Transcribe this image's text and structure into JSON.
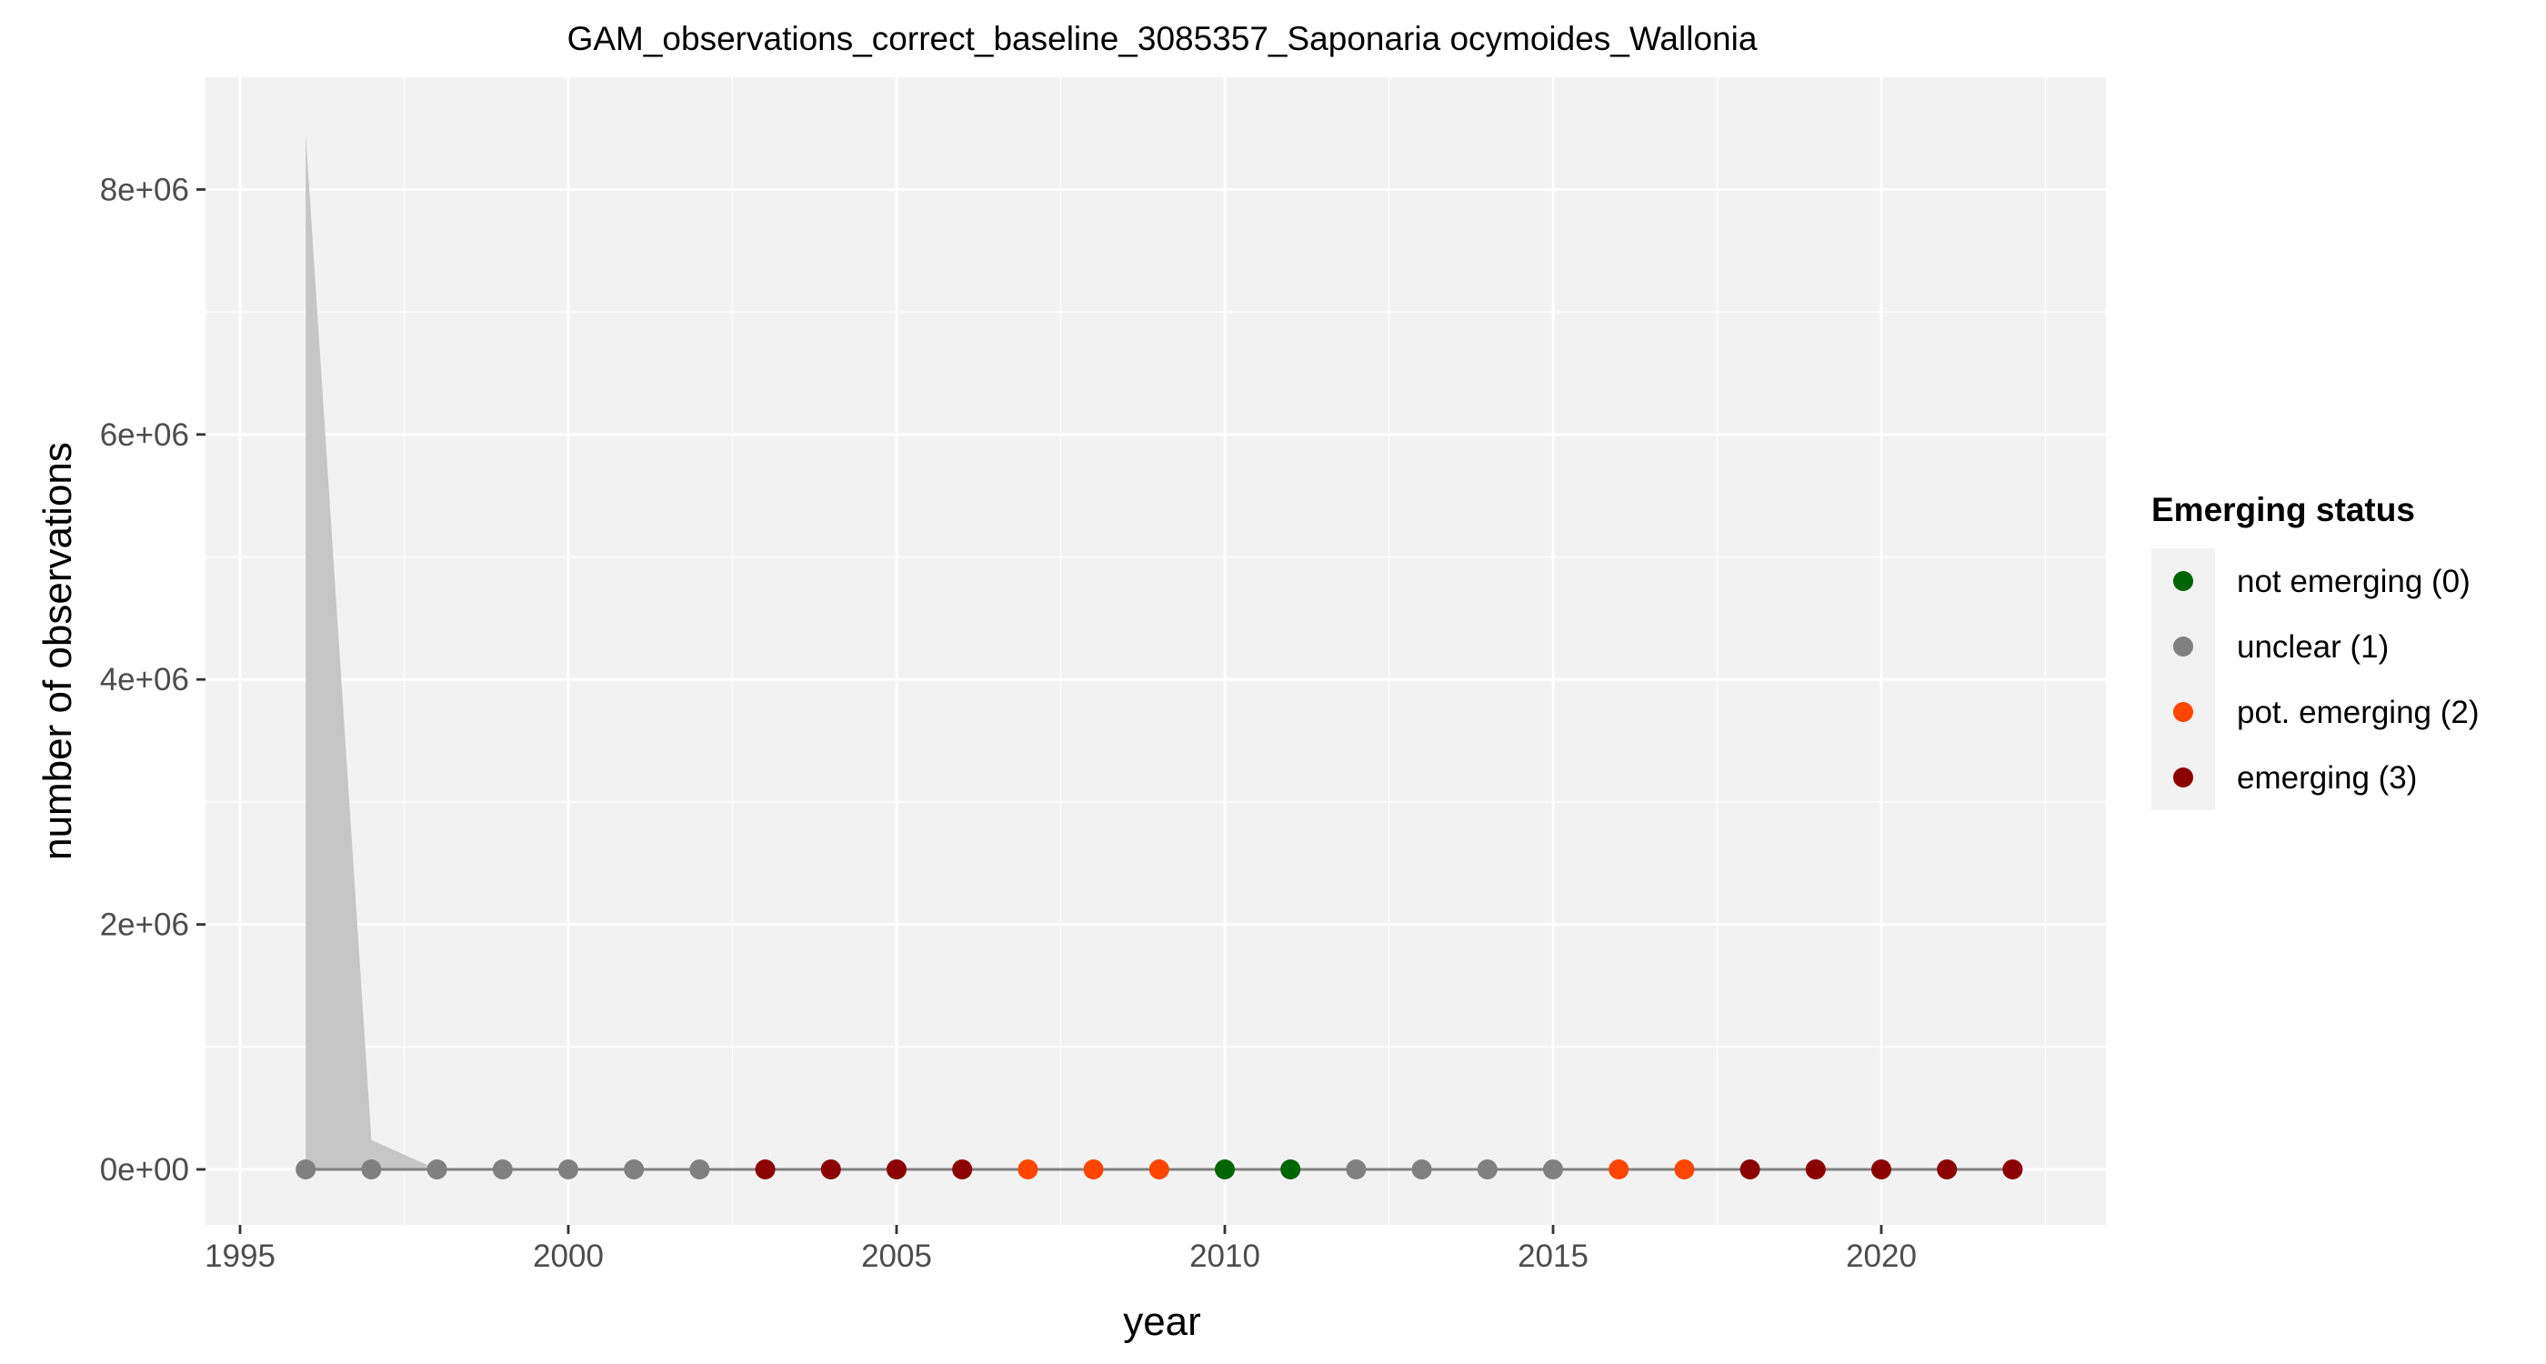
{
  "chart_data": {
    "type": "line",
    "title": "GAM_observations_correct_baseline_3085357_Saponaria ocymoides_Wallonia",
    "xlabel": "year",
    "ylabel": "number of observations",
    "xlim": [
      1995,
      2023
    ],
    "ylim": [
      -400000,
      8800000
    ],
    "x_ticks": [
      1995,
      2000,
      2005,
      2010,
      2015,
      2020
    ],
    "x_tick_labels": [
      "1995",
      "2000",
      "2005",
      "2010",
      "2015",
      "2020"
    ],
    "y_ticks": [
      0,
      2000000,
      4000000,
      6000000,
      8000000
    ],
    "y_tick_labels": [
      "0e+00",
      "2e+06",
      "4e+06",
      "6e+06",
      "8e+06"
    ],
    "grid": true,
    "legend_position": "right",
    "legend": {
      "title": "Emerging status",
      "entries": [
        {
          "label": "not emerging (0)",
          "status": 0,
          "color": "#006400"
        },
        {
          "label": "unclear (1)",
          "status": 1,
          "color": "#808080"
        },
        {
          "label": "pot. emerging (2)",
          "status": 2,
          "color": "#FF4500"
        },
        {
          "label": "emerging (3)",
          "status": 3,
          "color": "#8B0000"
        }
      ]
    },
    "colors": {
      "panel_background": "#F2F2F2",
      "grid": "#FFFFFF",
      "line": "#808080",
      "ribbon": "#C6C6C6"
    },
    "series": [
      {
        "x": [
          1996,
          1997,
          1998,
          1999,
          2000,
          2001,
          2002,
          2003,
          2004,
          2005,
          2006,
          2007,
          2008,
          2009,
          2010,
          2011,
          2012,
          2013,
          2014,
          2015,
          2016,
          2017,
          2018,
          2019,
          2020,
          2021,
          2022
        ],
        "values": [
          0,
          0,
          0,
          0,
          0,
          0,
          0,
          0,
          0,
          0,
          0,
          0,
          0,
          0,
          0,
          0,
          0,
          0,
          0,
          0,
          0,
          0,
          0,
          0,
          0,
          0,
          0
        ],
        "status": [
          1,
          1,
          1,
          1,
          1,
          1,
          1,
          3,
          3,
          3,
          3,
          2,
          2,
          2,
          0,
          0,
          1,
          1,
          1,
          1,
          2,
          2,
          3,
          3,
          3,
          3,
          3
        ]
      }
    ],
    "ribbon": {
      "x": [
        1996,
        1997,
        1998
      ],
      "lower": [
        0,
        0,
        0
      ],
      "upper": [
        8450000,
        240000,
        0
      ]
    }
  }
}
